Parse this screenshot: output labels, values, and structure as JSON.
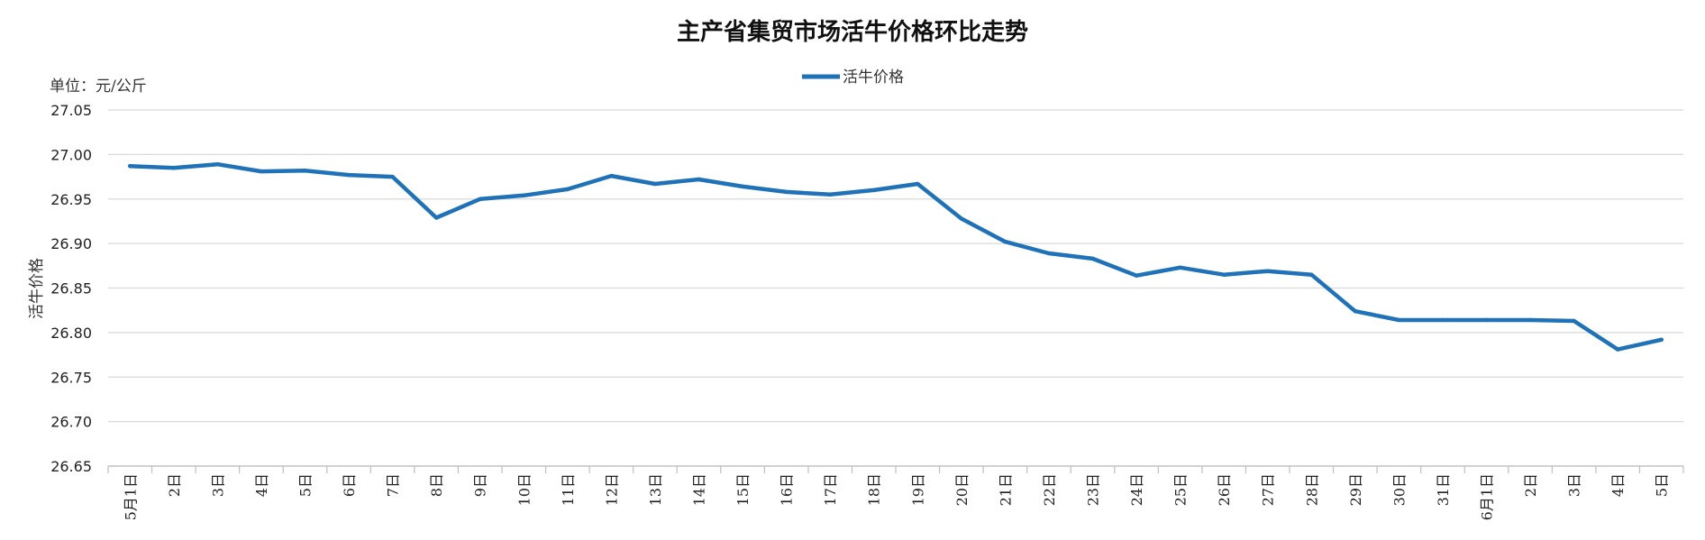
{
  "chart_data": {
    "type": "line",
    "title": "主产省集贸市场活牛价格环比走势",
    "unit_label": "单位：元/公斤",
    "ylabel": "活牛价格",
    "xlabel": "",
    "legend": {
      "position": "top-center",
      "entries": [
        "活牛价格"
      ]
    },
    "grid": {
      "horizontal": true,
      "vertical": false
    },
    "ylim": [
      26.65,
      27.05
    ],
    "yticks": [
      "26.65",
      "26.70",
      "26.75",
      "26.80",
      "26.85",
      "26.90",
      "26.95",
      "27.00",
      "27.05"
    ],
    "categories": [
      "5月1日",
      "2日",
      "3日",
      "4日",
      "5日",
      "6日",
      "7日",
      "8日",
      "9日",
      "10日",
      "11日",
      "12日",
      "13日",
      "14日",
      "15日",
      "16日",
      "17日",
      "18日",
      "19日",
      "20日",
      "21日",
      "22日",
      "23日",
      "24日",
      "25日",
      "26日",
      "27日",
      "28日",
      "29日",
      "30日",
      "31日",
      "6月1日",
      "2日",
      "3日",
      "4日",
      "5日"
    ],
    "series": [
      {
        "name": "活牛价格",
        "color": "#1f72b8",
        "values": [
          26.987,
          26.985,
          26.989,
          26.981,
          26.982,
          26.977,
          26.975,
          26.929,
          26.95,
          26.954,
          26.961,
          26.976,
          26.967,
          26.972,
          26.964,
          26.958,
          26.955,
          26.96,
          26.967,
          26.928,
          26.902,
          26.889,
          26.883,
          26.864,
          26.873,
          26.865,
          26.869,
          26.865,
          26.824,
          26.814,
          26.814,
          26.814,
          26.814,
          26.813,
          26.781,
          26.792
        ]
      }
    ]
  }
}
